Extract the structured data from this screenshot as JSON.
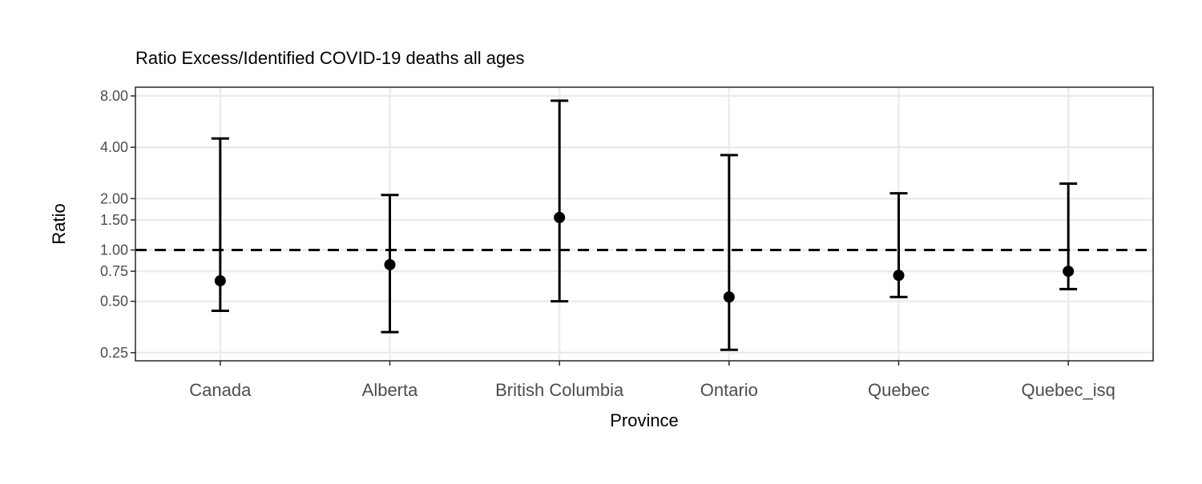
{
  "chart_data": {
    "type": "errorbar",
    "title": "Ratio Excess/Identified COVID-19 deaths all ages",
    "xlabel": "Province",
    "ylabel": "Ratio",
    "y_scale": "log",
    "ylim": [
      0.224,
      9.0
    ],
    "yticks": [
      0.25,
      0.5,
      0.75,
      1.0,
      1.5,
      2.0,
      4.0,
      8.0
    ],
    "ytick_labels": [
      "0.25",
      "0.50",
      "0.75",
      "1.00",
      "1.50",
      "2.00",
      "4.00",
      "8.00"
    ],
    "reference_line": 1.0,
    "grid": true,
    "categories": [
      "Canada",
      "Alberta",
      "British Columbia",
      "Ontario",
      "Quebec",
      "Quebec_isq"
    ],
    "points": [
      {
        "category": "Canada",
        "estimate": 0.66,
        "lower": 0.44,
        "upper": 4.5
      },
      {
        "category": "Alberta",
        "estimate": 0.82,
        "lower": 0.33,
        "upper": 2.1
      },
      {
        "category": "British Columbia",
        "estimate": 1.55,
        "lower": 0.5,
        "upper": 7.5
      },
      {
        "category": "Ontario",
        "estimate": 0.53,
        "lower": 0.26,
        "upper": 3.6
      },
      {
        "category": "Quebec",
        "estimate": 0.71,
        "lower": 0.53,
        "upper": 2.15
      },
      {
        "category": "Quebec_isq",
        "estimate": 0.75,
        "lower": 0.59,
        "upper": 2.45
      }
    ],
    "colors": {
      "points": "#000000",
      "grid": "#ebebeb",
      "border": "#333333"
    }
  }
}
